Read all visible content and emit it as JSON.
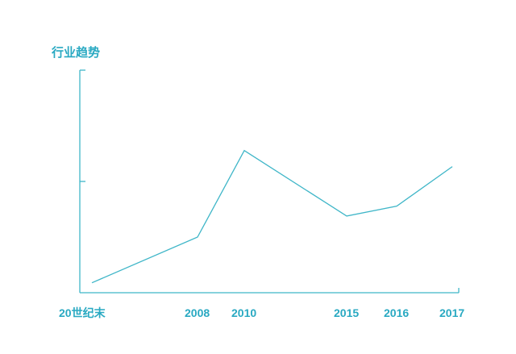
{
  "chart_data": {
    "type": "line",
    "title": "行业趋势",
    "xlabel": "",
    "ylabel": "",
    "categories": [
      "20世纪末",
      "2008",
      "2010",
      "2015",
      "2016",
      "2017"
    ],
    "x": [
      2000,
      2008,
      2010,
      2015,
      2016,
      2017
    ],
    "series": [
      {
        "values": [
          0.08,
          0.45,
          1.15,
          0.62,
          0.7,
          1.02
        ]
      }
    ],
    "ylim": [
      0,
      1.8
    ],
    "y_ticks": [
      0.9
    ],
    "grid": false,
    "legend": "none",
    "colors": {
      "line": "#3fb6c8",
      "text": "#29a9c2"
    }
  }
}
